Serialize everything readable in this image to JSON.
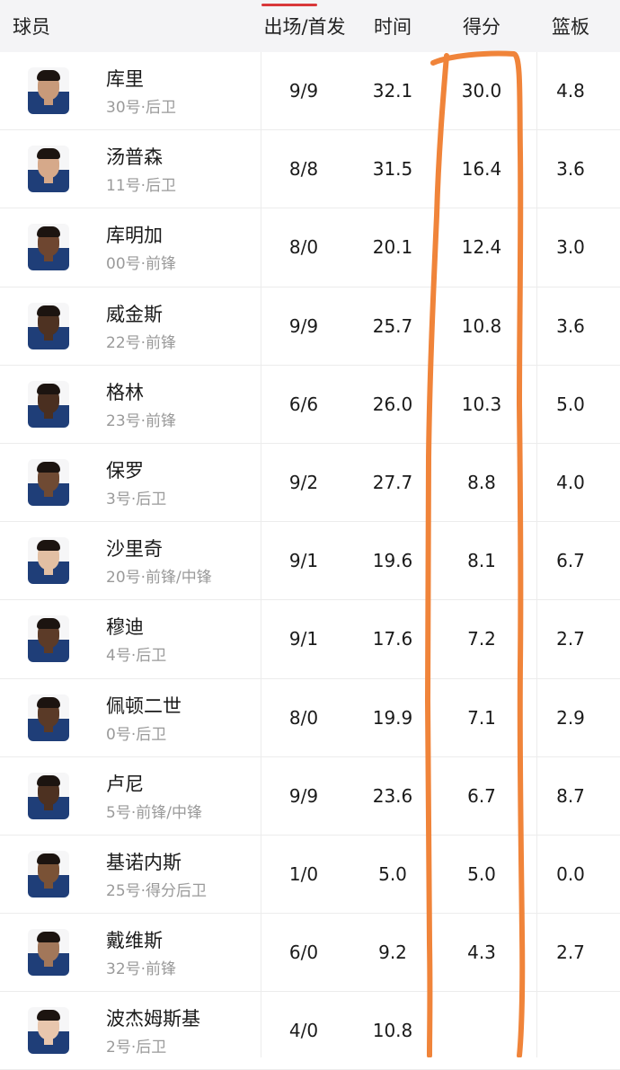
{
  "header": {
    "player": "球员",
    "games_starts": "出场/首发",
    "minutes": "时间",
    "points": "得分",
    "rebounds": "篮板"
  },
  "colors": {
    "header_bg": "#f4f4f6",
    "sort_indicator": "#d9383a",
    "annotation": "#f0843a",
    "meta_text": "#9a9a9a"
  },
  "icons": {
    "avatar": "player-headshot-icon"
  },
  "players": [
    {
      "name": "库里",
      "meta": "30号·后卫",
      "gs": "9/9",
      "min": "32.1",
      "pts": "30.0",
      "reb": "4.8"
    },
    {
      "name": "汤普森",
      "meta": "11号·后卫",
      "gs": "8/8",
      "min": "31.5",
      "pts": "16.4",
      "reb": "3.6"
    },
    {
      "name": "库明加",
      "meta": "00号·前锋",
      "gs": "8/0",
      "min": "20.1",
      "pts": "12.4",
      "reb": "3.0"
    },
    {
      "name": "威金斯",
      "meta": "22号·前锋",
      "gs": "9/9",
      "min": "25.7",
      "pts": "10.8",
      "reb": "3.6"
    },
    {
      "name": "格林",
      "meta": "23号·前锋",
      "gs": "6/6",
      "min": "26.0",
      "pts": "10.3",
      "reb": "5.0"
    },
    {
      "name": "保罗",
      "meta": "3号·后卫",
      "gs": "9/2",
      "min": "27.7",
      "pts": "8.8",
      "reb": "4.0"
    },
    {
      "name": "沙里奇",
      "meta": "20号·前锋/中锋",
      "gs": "9/1",
      "min": "19.6",
      "pts": "8.1",
      "reb": "6.7"
    },
    {
      "name": "穆迪",
      "meta": "4号·后卫",
      "gs": "9/1",
      "min": "17.6",
      "pts": "7.2",
      "reb": "2.7"
    },
    {
      "name": "佩顿二世",
      "meta": "0号·后卫",
      "gs": "8/0",
      "min": "19.9",
      "pts": "7.1",
      "reb": "2.9"
    },
    {
      "name": "卢尼",
      "meta": "5号·前锋/中锋",
      "gs": "9/9",
      "min": "23.6",
      "pts": "6.7",
      "reb": "8.7"
    },
    {
      "name": "基诺内斯",
      "meta": "25号·得分后卫",
      "gs": "1/0",
      "min": "5.0",
      "pts": "5.0",
      "reb": "0.0"
    },
    {
      "name": "戴维斯",
      "meta": "32号·前锋",
      "gs": "6/0",
      "min": "9.2",
      "pts": "4.3",
      "reb": "2.7"
    },
    {
      "name": "波杰姆斯基",
      "meta": "2号·后卫",
      "gs": "4/0",
      "min": "10.8",
      "pts": "",
      "reb": ""
    }
  ]
}
